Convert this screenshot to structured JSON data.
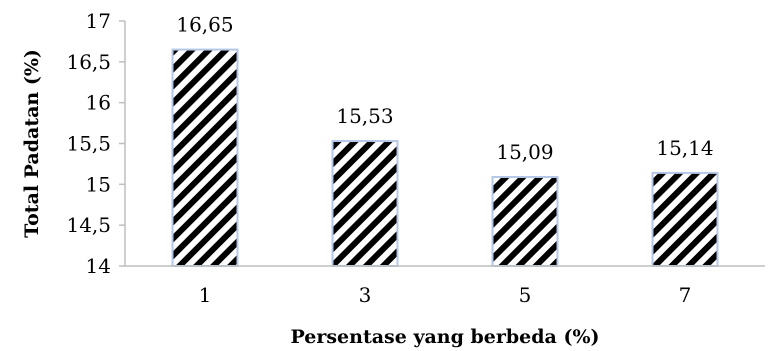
{
  "chart_data": {
    "type": "bar",
    "categories": [
      "1",
      "3",
      "5",
      "7"
    ],
    "values": [
      16.65,
      15.53,
      15.09,
      15.14
    ],
    "data_labels": [
      "16,65",
      "15,53",
      "15,09",
      "15,14"
    ],
    "title": "",
    "xlabel": "Persentase yang berbeda (%)",
    "ylabel": "Total Padatan (%)",
    "ylim": [
      14,
      17
    ],
    "yticks": [
      14,
      14.5,
      15,
      15.5,
      16,
      16.5,
      17
    ],
    "ytick_labels": [
      "14",
      "14,5",
      "15",
      "15,5",
      "16",
      "16,5",
      "17"
    ],
    "grid": false,
    "legend": "none",
    "bar_fill": "diagonal-stripes",
    "bar_pattern_color": "#000000",
    "bar_outline_color": "#b4c7e7"
  }
}
